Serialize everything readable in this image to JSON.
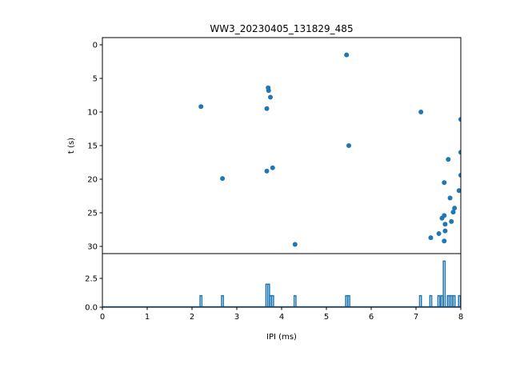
{
  "chart_data": [
    {
      "type": "scatter",
      "title": "WW3_20230405_131829_485",
      "xlabel": "",
      "ylabel": "t (s)",
      "xlim": [
        0,
        8
      ],
      "ylim": [
        31,
        -1
      ],
      "y_inverted": true,
      "yticks": [
        "0",
        "5",
        "10",
        "15",
        "20",
        "25",
        "30"
      ],
      "color": "#1f77b4",
      "points": [
        [
          2.2,
          9.2
        ],
        [
          2.68,
          19.9
        ],
        [
          3.67,
          9.5
        ],
        [
          3.7,
          6.4
        ],
        [
          3.71,
          6.8
        ],
        [
          3.75,
          7.8
        ],
        [
          3.67,
          18.8
        ],
        [
          3.8,
          18.3
        ],
        [
          4.3,
          29.7
        ],
        [
          5.45,
          1.5
        ],
        [
          5.5,
          15.0
        ],
        [
          7.11,
          10.0
        ],
        [
          8.0,
          11.1
        ],
        [
          8.0,
          16.0
        ],
        [
          7.72,
          17.06
        ],
        [
          8.0,
          19.4
        ],
        [
          7.63,
          20.5
        ],
        [
          7.96,
          21.7
        ],
        [
          7.76,
          22.8
        ],
        [
          7.86,
          24.3
        ],
        [
          7.83,
          24.9
        ],
        [
          7.63,
          25.4
        ],
        [
          7.58,
          25.8
        ],
        [
          7.79,
          26.3
        ],
        [
          7.65,
          26.7
        ],
        [
          7.65,
          27.7
        ],
        [
          7.51,
          28.1
        ],
        [
          7.33,
          28.7
        ],
        [
          7.63,
          29.2
        ]
      ]
    },
    {
      "type": "line",
      "subtype": "histogram-step",
      "xlabel": "IPI (ms)",
      "ylabel": "",
      "xlim": [
        0,
        8
      ],
      "ylim": [
        0,
        4.7
      ],
      "xticks": [
        "0",
        "1",
        "2",
        "3",
        "4",
        "5",
        "6",
        "7",
        "8"
      ],
      "yticks": [
        "0.0",
        "2.5"
      ],
      "ytick_values": [
        0,
        2.5
      ],
      "color": "#1f77b4",
      "bin_width": 0.04,
      "bars": [
        [
          2.2,
          1
        ],
        [
          2.68,
          1
        ],
        [
          3.67,
          2
        ],
        [
          3.71,
          2
        ],
        [
          3.75,
          1
        ],
        [
          3.8,
          1
        ],
        [
          4.3,
          1
        ],
        [
          5.45,
          1
        ],
        [
          5.5,
          1
        ],
        [
          7.1,
          1
        ],
        [
          7.33,
          1
        ],
        [
          7.51,
          1
        ],
        [
          7.58,
          1
        ],
        [
          7.63,
          4
        ],
        [
          7.72,
          1
        ],
        [
          7.76,
          1
        ],
        [
          7.8,
          1
        ],
        [
          7.85,
          1
        ],
        [
          7.97,
          1
        ]
      ]
    }
  ]
}
